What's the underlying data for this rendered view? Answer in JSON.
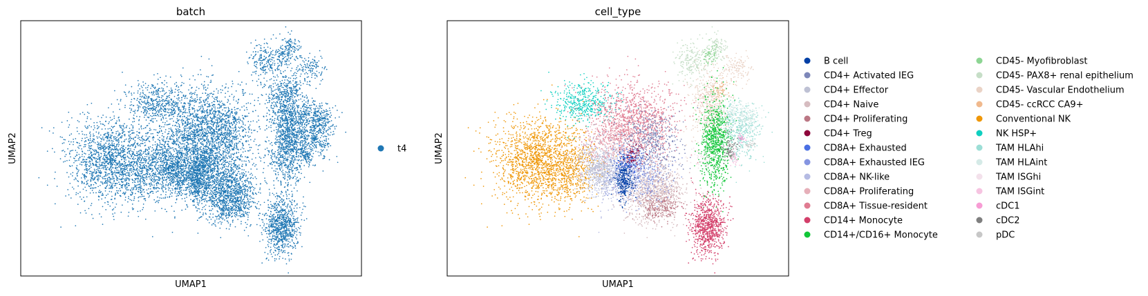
{
  "chart_data": [
    {
      "type": "scatter",
      "title": "batch",
      "xlabel": "UMAP1",
      "ylabel": "UMAP2",
      "grid": false,
      "ticks": false,
      "legend_position": "right",
      "legend": [
        {
          "label": "t4",
          "color": "#1f77b4"
        }
      ]
    },
    {
      "type": "scatter",
      "title": "cell_type",
      "xlabel": "UMAP1",
      "ylabel": "UMAP2",
      "grid": false,
      "ticks": false,
      "legend_position": "right",
      "legend": [
        {
          "label": "B cell",
          "color": "#023fa5"
        },
        {
          "label": "CD4+ Activated IEG",
          "color": "#7d87b9"
        },
        {
          "label": "CD4+ Effector",
          "color": "#bec1d4"
        },
        {
          "label": "CD4+ Naive",
          "color": "#d6bcc0"
        },
        {
          "label": "CD4+ Proliferating",
          "color": "#bb7784"
        },
        {
          "label": "CD4+ Treg",
          "color": "#8e063b"
        },
        {
          "label": "CD8A+ Exhausted",
          "color": "#4a6fe3"
        },
        {
          "label": "CD8A+ Exhausted IEG",
          "color": "#8595e1"
        },
        {
          "label": "CD8A+ NK-like",
          "color": "#b5bbe3"
        },
        {
          "label": "CD8A+ Proliferating",
          "color": "#e6afb9"
        },
        {
          "label": "CD8A+ Tissue-resident",
          "color": "#e07b91"
        },
        {
          "label": "CD14+ Monocyte",
          "color": "#d33f6a"
        },
        {
          "label": "CD14+/CD16+ Monocyte",
          "color": "#11c638"
        },
        {
          "label": "CD45- Myofibroblast",
          "color": "#8dd593"
        },
        {
          "label": "CD45- PAX8+ renal epithelium",
          "color": "#c6dec7"
        },
        {
          "label": "CD45- Vascular Endothelium",
          "color": "#ead3c6"
        },
        {
          "label": "CD45- ccRCC CA9+",
          "color": "#f0b98d"
        },
        {
          "label": "Conventional NK",
          "color": "#ef9708"
        },
        {
          "label": "NK HSP+",
          "color": "#0fcfc0"
        },
        {
          "label": "TAM HLAhi",
          "color": "#9cded6"
        },
        {
          "label": "TAM HLAint",
          "color": "#d5eae7"
        },
        {
          "label": "TAM ISGhi",
          "color": "#f3e1eb"
        },
        {
          "label": "TAM ISGint",
          "color": "#f6c4e1"
        },
        {
          "label": "cDC1",
          "color": "#f79cd4"
        },
        {
          "label": "cDC2",
          "color": "#7f7f7f"
        },
        {
          "label": "pDC",
          "color": "#c7c7c7"
        }
      ]
    }
  ]
}
